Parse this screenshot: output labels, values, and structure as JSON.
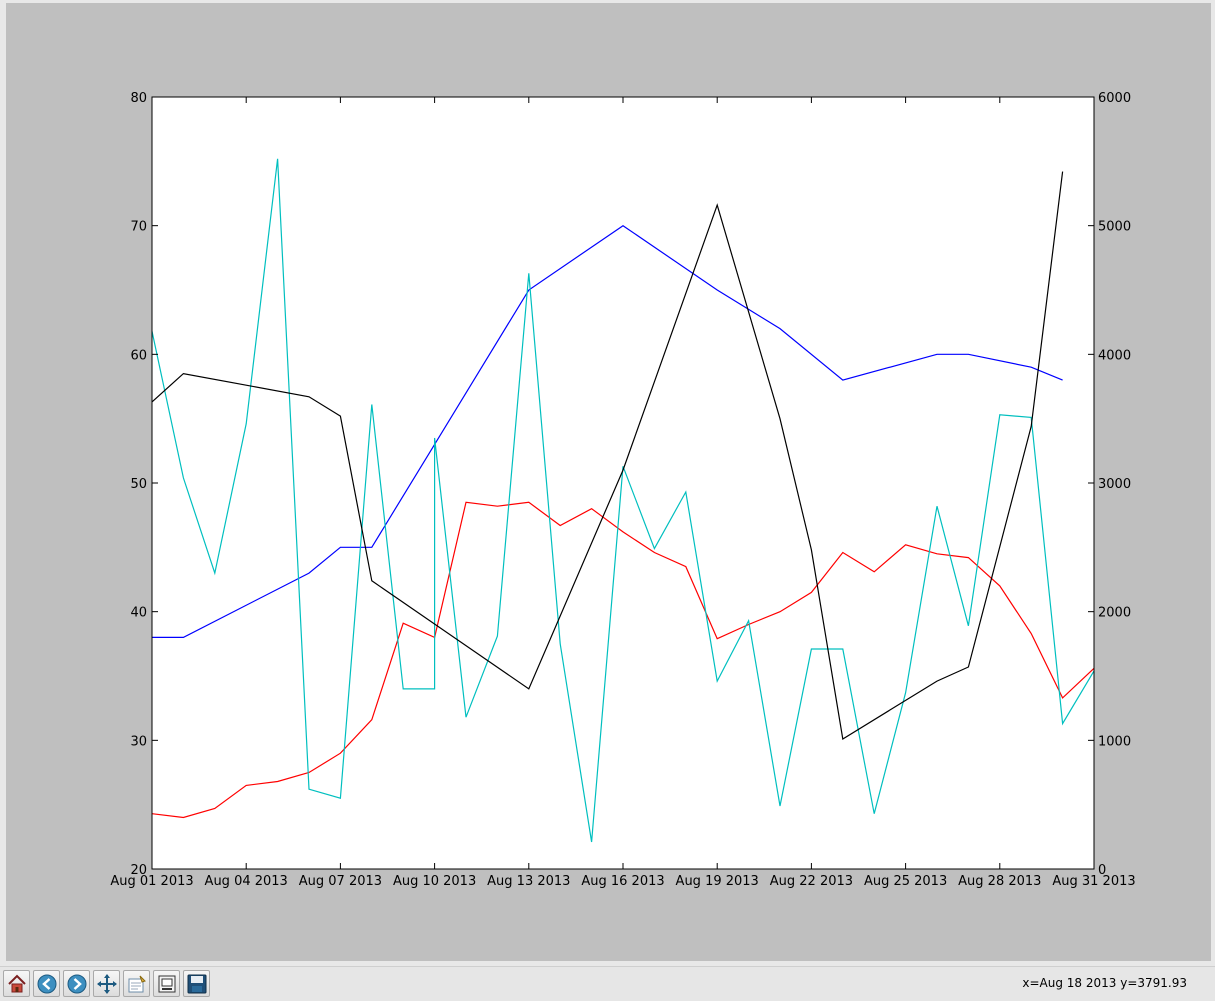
{
  "toolbar": {
    "buttons": [
      {
        "name": "home-button",
        "icon": "home-icon"
      },
      {
        "name": "back-button",
        "icon": "back-arrow-icon"
      },
      {
        "name": "forward-button",
        "icon": "forward-arrow-icon"
      },
      {
        "name": "pan-button",
        "icon": "move-arrows-icon"
      },
      {
        "name": "configure-subplots-button",
        "icon": "subplots-config-icon"
      },
      {
        "name": "edit-axes-button",
        "icon": "edit-axes-icon"
      },
      {
        "name": "save-button",
        "icon": "floppy-disk-icon"
      }
    ],
    "coordinates": "x=Aug 18 2013 y=3791.93"
  },
  "chart_data": {
    "type": "line",
    "title": "",
    "xlabel": "",
    "ylabel": "",
    "xlim": [
      "2013-08-01",
      "2013-08-31"
    ],
    "ylim_left": [
      20,
      80
    ],
    "ylim_right": [
      0,
      6000
    ],
    "grid": false,
    "x_tick_labels": [
      "Aug 01 2013",
      "Aug 04 2013",
      "Aug 07 2013",
      "Aug 10 2013",
      "Aug 13 2013",
      "Aug 16 2013",
      "Aug 19 2013",
      "Aug 22 2013",
      "Aug 25 2013",
      "Aug 28 2013",
      "Aug 31 2013"
    ],
    "x_tick_dates": [
      "2013-08-01",
      "2013-08-04",
      "2013-08-07",
      "2013-08-10",
      "2013-08-13",
      "2013-08-16",
      "2013-08-19",
      "2013-08-22",
      "2013-08-25",
      "2013-08-28",
      "2013-08-31"
    ],
    "y_ticks_left": [
      20,
      30,
      40,
      50,
      60,
      70,
      80
    ],
    "y_ticks_right": [
      0,
      1000,
      2000,
      3000,
      4000,
      5000,
      6000
    ],
    "series": [
      {
        "axis": "left",
        "color": "#0000ff",
        "points": [
          [
            "2013-08-01",
            38
          ],
          [
            "2013-08-02",
            38
          ],
          [
            "2013-08-06",
            43
          ],
          [
            "2013-08-07",
            45
          ],
          [
            "2013-08-08",
            45
          ],
          [
            "2013-08-10",
            53
          ],
          [
            "2013-08-13",
            65
          ],
          [
            "2013-08-16",
            70
          ],
          [
            "2013-08-19",
            65
          ],
          [
            "2013-08-21",
            62
          ],
          [
            "2013-08-23",
            58
          ],
          [
            "2013-08-26",
            60
          ],
          [
            "2013-08-27",
            60
          ],
          [
            "2013-08-29",
            59
          ],
          [
            "2013-08-30",
            58
          ]
        ]
      },
      {
        "axis": "left",
        "color": "#ff0000",
        "points": [
          [
            "2013-08-01",
            24.3
          ],
          [
            "2013-08-02",
            24.0
          ],
          [
            "2013-08-03",
            24.7
          ],
          [
            "2013-08-04",
            26.5
          ],
          [
            "2013-08-05",
            26.8
          ],
          [
            "2013-08-06",
            27.5
          ],
          [
            "2013-08-07",
            29.0
          ],
          [
            "2013-08-08",
            31.6
          ],
          [
            "2013-08-09",
            39.1
          ],
          [
            "2013-08-10",
            38.0
          ],
          [
            "2013-08-11",
            48.5
          ],
          [
            "2013-08-12",
            48.2
          ],
          [
            "2013-08-13",
            48.5
          ],
          [
            "2013-08-14",
            46.7
          ],
          [
            "2013-08-15",
            48.0
          ],
          [
            "2013-08-16",
            46.2
          ],
          [
            "2013-08-17",
            44.6
          ],
          [
            "2013-08-18",
            43.5
          ],
          [
            "2013-08-19",
            37.9
          ],
          [
            "2013-08-20",
            39.0
          ],
          [
            "2013-08-21",
            40.0
          ],
          [
            "2013-08-22",
            41.5
          ],
          [
            "2013-08-23",
            44.6
          ],
          [
            "2013-08-24",
            43.1
          ],
          [
            "2013-08-25",
            45.2
          ],
          [
            "2013-08-26",
            44.5
          ],
          [
            "2013-08-27",
            44.2
          ],
          [
            "2013-08-28",
            42.0
          ],
          [
            "2013-08-29",
            38.3
          ],
          [
            "2013-08-30",
            33.3
          ],
          [
            "2013-08-31",
            35.6
          ]
        ]
      },
      {
        "axis": "left",
        "color": "#00bfbf",
        "points": [
          [
            "2013-08-01",
            61.8
          ],
          [
            "2013-08-02",
            50.4
          ],
          [
            "2013-08-03",
            43.0
          ],
          [
            "2013-08-04",
            54.6
          ],
          [
            "2013-08-05",
            75.2
          ],
          [
            "2013-08-06",
            26.2
          ],
          [
            "2013-08-07",
            25.5
          ],
          [
            "2013-08-08",
            56.1
          ],
          [
            "2013-08-09",
            34.0
          ],
          [
            "2013-08-10",
            34.0
          ],
          [
            "2013-08-10",
            53.5
          ],
          [
            "2013-08-11",
            31.8
          ],
          [
            "2013-08-12",
            38.1
          ],
          [
            "2013-08-13",
            66.3
          ],
          [
            "2013-08-14",
            37.5
          ],
          [
            "2013-08-15",
            22.1
          ],
          [
            "2013-08-16",
            51.3
          ],
          [
            "2013-08-17",
            44.9
          ],
          [
            "2013-08-18",
            49.3
          ],
          [
            "2013-08-19",
            34.6
          ],
          [
            "2013-08-20",
            39.3
          ],
          [
            "2013-08-21",
            24.9
          ],
          [
            "2013-08-22",
            37.1
          ],
          [
            "2013-08-23",
            37.1
          ],
          [
            "2013-08-24",
            24.3
          ],
          [
            "2013-08-25",
            33.7
          ],
          [
            "2013-08-26",
            48.2
          ],
          [
            "2013-08-27",
            38.9
          ],
          [
            "2013-08-28",
            55.3
          ],
          [
            "2013-08-29",
            55.1
          ],
          [
            "2013-08-30",
            31.3
          ],
          [
            "2013-08-31",
            35.4
          ]
        ]
      },
      {
        "axis": "right",
        "color": "#000000",
        "points": [
          [
            "2013-08-01",
            3630
          ],
          [
            "2013-08-02",
            3850
          ],
          [
            "2013-08-06",
            3670
          ],
          [
            "2013-08-07",
            3520
          ],
          [
            "2013-08-08",
            2240
          ],
          [
            "2013-08-13",
            1400
          ],
          [
            "2013-08-16",
            3100
          ],
          [
            "2013-08-19",
            5160
          ],
          [
            "2013-08-21",
            3500
          ],
          [
            "2013-08-22",
            2480
          ],
          [
            "2013-08-23",
            1010
          ],
          [
            "2013-08-25",
            1310
          ],
          [
            "2013-08-26",
            1460
          ],
          [
            "2013-08-27",
            1570
          ],
          [
            "2013-08-29",
            3440
          ],
          [
            "2013-08-30",
            5420
          ]
        ]
      }
    ]
  }
}
